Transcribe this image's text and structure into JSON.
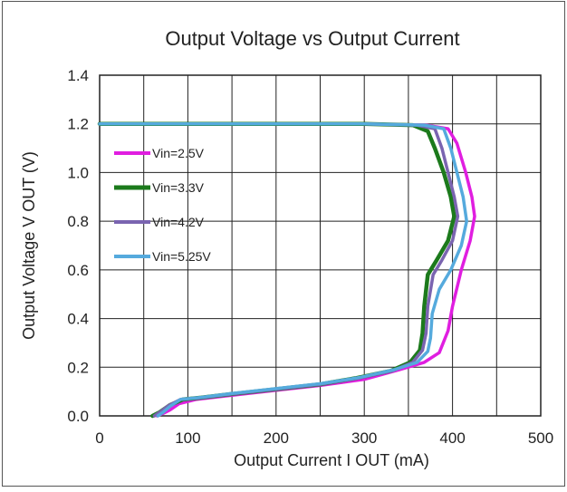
{
  "chart_data": {
    "type": "line",
    "title": "Output Voltage vs Output Current",
    "xlabel": "Output Current I OUT (mA)",
    "ylabel": "Output Voltage V OUT (V)",
    "xlim": [
      0,
      500
    ],
    "ylim": [
      0,
      1.4
    ],
    "x_ticks": [
      "0",
      "100",
      "200",
      "300",
      "400",
      "500"
    ],
    "y_ticks": [
      "0.0",
      "0.2",
      "0.4",
      "0.6",
      "0.8",
      "1.0",
      "1.2",
      "1.4"
    ],
    "grid": true,
    "legend_position": "upper-left inside",
    "series": [
      {
        "name": "Vin=2.5V",
        "color": "#e01ee0",
        "points": [
          [
            0,
            1.2
          ],
          [
            150,
            1.2
          ],
          [
            300,
            1.2
          ],
          [
            370,
            1.195
          ],
          [
            395,
            1.18
          ],
          [
            405,
            1.12
          ],
          [
            415,
            1.0
          ],
          [
            422,
            0.9
          ],
          [
            425,
            0.82
          ],
          [
            420,
            0.72
          ],
          [
            410,
            0.6
          ],
          [
            400,
            0.45
          ],
          [
            395,
            0.35
          ],
          [
            385,
            0.26
          ],
          [
            368,
            0.22
          ],
          [
            340,
            0.19
          ],
          [
            300,
            0.15
          ],
          [
            250,
            0.125
          ],
          [
            200,
            0.105
          ],
          [
            150,
            0.085
          ],
          [
            110,
            0.068
          ],
          [
            90,
            0.05
          ],
          [
            80,
            0.025
          ],
          [
            72,
            0.01
          ],
          [
            65,
            0.0
          ]
        ]
      },
      {
        "name": "Vin=3.3V",
        "color": "#1c7a1c",
        "points": [
          [
            0,
            1.2
          ],
          [
            150,
            1.2
          ],
          [
            300,
            1.2
          ],
          [
            355,
            1.195
          ],
          [
            372,
            1.17
          ],
          [
            380,
            1.1
          ],
          [
            390,
            1.0
          ],
          [
            398,
            0.9
          ],
          [
            402,
            0.82
          ],
          [
            395,
            0.72
          ],
          [
            382,
            0.64
          ],
          [
            372,
            0.58
          ],
          [
            368,
            0.45
          ],
          [
            366,
            0.34
          ],
          [
            363,
            0.27
          ],
          [
            352,
            0.22
          ],
          [
            330,
            0.185
          ],
          [
            290,
            0.155
          ],
          [
            250,
            0.13
          ],
          [
            200,
            0.11
          ],
          [
            150,
            0.09
          ],
          [
            115,
            0.075
          ],
          [
            95,
            0.068
          ],
          [
            80,
            0.045
          ],
          [
            68,
            0.015
          ],
          [
            60,
            0.0
          ]
        ]
      },
      {
        "name": "Vin=4.2V",
        "color": "#7a64b0",
        "points": [
          [
            0,
            1.2
          ],
          [
            150,
            1.2
          ],
          [
            300,
            1.2
          ],
          [
            360,
            1.195
          ],
          [
            380,
            1.18
          ],
          [
            388,
            1.1
          ],
          [
            395,
            1.0
          ],
          [
            402,
            0.9
          ],
          [
            406,
            0.82
          ],
          [
            400,
            0.72
          ],
          [
            388,
            0.64
          ],
          [
            378,
            0.58
          ],
          [
            372,
            0.45
          ],
          [
            370,
            0.34
          ],
          [
            366,
            0.27
          ],
          [
            355,
            0.22
          ],
          [
            332,
            0.185
          ],
          [
            292,
            0.155
          ],
          [
            250,
            0.13
          ],
          [
            200,
            0.11
          ],
          [
            150,
            0.09
          ],
          [
            115,
            0.075
          ],
          [
            92,
            0.068
          ],
          [
            78,
            0.042
          ],
          [
            68,
            0.015
          ],
          [
            62,
            0.0
          ]
        ]
      },
      {
        "name": "Vin=5.25V",
        "color": "#55aadd",
        "points": [
          [
            0,
            1.2
          ],
          [
            150,
            1.2
          ],
          [
            300,
            1.2
          ],
          [
            368,
            1.195
          ],
          [
            390,
            1.18
          ],
          [
            398,
            1.1
          ],
          [
            405,
            1.0
          ],
          [
            412,
            0.9
          ],
          [
            416,
            0.8
          ],
          [
            410,
            0.7
          ],
          [
            398,
            0.6
          ],
          [
            385,
            0.52
          ],
          [
            377,
            0.42
          ],
          [
            375,
            0.32
          ],
          [
            372,
            0.265
          ],
          [
            360,
            0.22
          ],
          [
            334,
            0.19
          ],
          [
            295,
            0.158
          ],
          [
            250,
            0.132
          ],
          [
            200,
            0.112
          ],
          [
            150,
            0.092
          ],
          [
            115,
            0.076
          ],
          [
            92,
            0.068
          ],
          [
            80,
            0.04
          ],
          [
            72,
            0.015
          ],
          [
            66,
            0.0
          ]
        ]
      }
    ]
  }
}
